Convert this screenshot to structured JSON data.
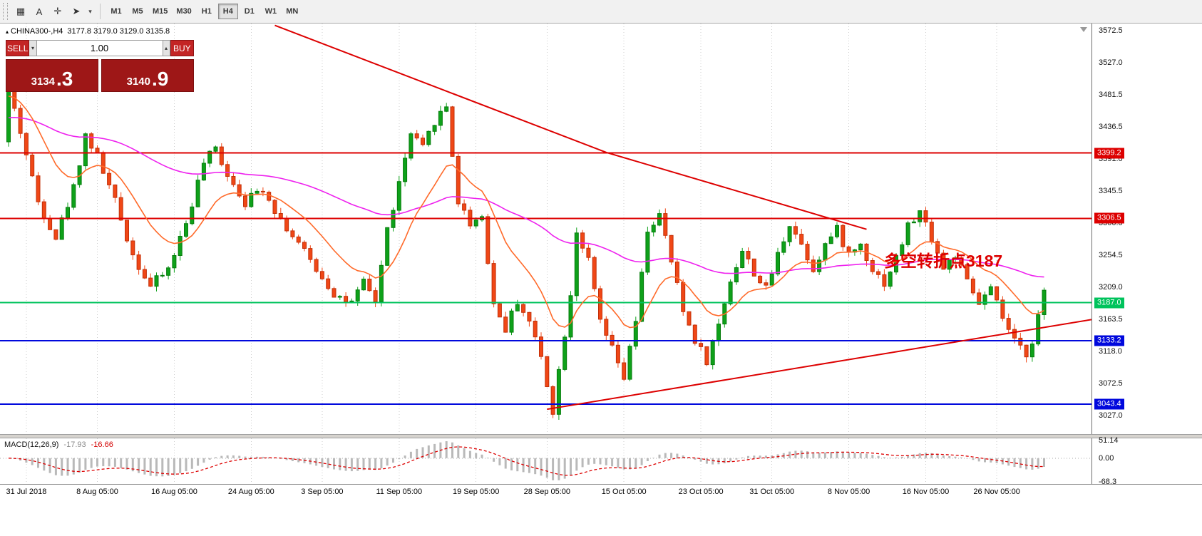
{
  "toolbar": {
    "icons": [
      {
        "name": "symbols-grid-icon",
        "glyph": "▦"
      },
      {
        "name": "text-label-icon",
        "glyph": "A"
      },
      {
        "name": "crosshair-icon",
        "glyph": "✛"
      },
      {
        "name": "draw-tools-icon",
        "glyph": "➤"
      },
      {
        "name": "draw-tools-caret-icon",
        "glyph": "▾"
      }
    ],
    "timeframes": [
      {
        "label": "M1",
        "active": false
      },
      {
        "label": "M5",
        "active": false
      },
      {
        "label": "M15",
        "active": false
      },
      {
        "label": "M30",
        "active": false
      },
      {
        "label": "H1",
        "active": false
      },
      {
        "label": "H4",
        "active": true
      },
      {
        "label": "D1",
        "active": false
      },
      {
        "label": "W1",
        "active": false
      },
      {
        "label": "MN",
        "active": false
      }
    ]
  },
  "chart_header": {
    "collapse_icon": "▴",
    "symbol": "CHINA300-,H4",
    "ohlc": "3177.8 3179.0 3129.0 3135.8"
  },
  "trade_panel": {
    "sell_label": "SELL",
    "buy_label": "BUY",
    "volume": "1.00",
    "combo_caret": "▾",
    "spin_caret": "▴",
    "bid_main": "3134",
    "bid_pips": ".3",
    "ask_main": "3140",
    "ask_pips": ".9"
  },
  "chart_data": {
    "type": "candlestick",
    "symbol": "CHINA300-",
    "timeframe": "H4",
    "bar_count": 176,
    "y_range": [
      3000.8,
      3582.6
    ],
    "colors": {
      "up": "#0ea11a",
      "up_border": "#067d0c",
      "down": "#f04716",
      "down_border": "#c23009",
      "ma_fast": "#ff6a2a",
      "ma_slow": "#ee22ee",
      "trend": "#dd0000",
      "grid": "#cccccc",
      "hist": "#b9b9b9",
      "signal": "#dd0000"
    },
    "y_ticks": [
      3572.5,
      3527.0,
      3481.5,
      3436.5,
      3391.0,
      3345.5,
      3300.0,
      3254.5,
      3209.0,
      3163.5,
      3118.0,
      3072.5,
      3027.0
    ],
    "h_lines": [
      {
        "price": 3399.2,
        "color": "#dd0000"
      },
      {
        "price": 3306.5,
        "color": "#dd0000"
      },
      {
        "price": 3187.0,
        "color": "#00c35c"
      },
      {
        "price": 3133.2,
        "color": "#0008dd"
      },
      {
        "price": 3043.4,
        "color": "#0008dd"
      }
    ],
    "trend_lines": [
      {
        "points": [
          [
            45,
            3580
          ],
          [
            101,
            3400
          ],
          [
            145,
            3291
          ]
        ],
        "color": "#dd0000"
      },
      {
        "points": [
          [
            91,
            3036
          ],
          [
            183,
            3163
          ]
        ],
        "color": "#dd0000"
      }
    ],
    "ma_fast_start": 3478,
    "ma_slow_start": 3448,
    "price_waypoints": [
      [
        0,
        3415
      ],
      [
        1,
        3490
      ],
      [
        3,
        3430
      ],
      [
        6,
        3330
      ],
      [
        9,
        3280
      ],
      [
        12,
        3350
      ],
      [
        14,
        3425
      ],
      [
        16,
        3395
      ],
      [
        19,
        3330
      ],
      [
        22,
        3255
      ],
      [
        25,
        3210
      ],
      [
        28,
        3235
      ],
      [
        31,
        3300
      ],
      [
        34,
        3385
      ],
      [
        36,
        3405
      ],
      [
        38,
        3370
      ],
      [
        41,
        3330
      ],
      [
        44,
        3350
      ],
      [
        47,
        3305
      ],
      [
        50,
        3270
      ],
      [
        53,
        3235
      ],
      [
        56,
        3200
      ],
      [
        59,
        3185
      ],
      [
        61,
        3215
      ],
      [
        63,
        3190
      ],
      [
        65,
        3290
      ],
      [
        67,
        3355
      ],
      [
        69,
        3425
      ],
      [
        71,
        3405
      ],
      [
        73,
        3445
      ],
      [
        75,
        3465
      ],
      [
        77,
        3330
      ],
      [
        79,
        3300
      ],
      [
        81,
        3310
      ],
      [
        83,
        3185
      ],
      [
        85,
        3150
      ],
      [
        87,
        3190
      ],
      [
        89,
        3160
      ],
      [
        91,
        3110
      ],
      [
        93,
        3035
      ],
      [
        94,
        3090
      ],
      [
        96,
        3200
      ],
      [
        97,
        3290
      ],
      [
        99,
        3245
      ],
      [
        101,
        3160
      ],
      [
        103,
        3120
      ],
      [
        105,
        3080
      ],
      [
        107,
        3160
      ],
      [
        109,
        3290
      ],
      [
        111,
        3310
      ],
      [
        113,
        3245
      ],
      [
        115,
        3175
      ],
      [
        117,
        3135
      ],
      [
        119,
        3105
      ],
      [
        121,
        3155
      ],
      [
        123,
        3220
      ],
      [
        125,
        3260
      ],
      [
        127,
        3230
      ],
      [
        129,
        3205
      ],
      [
        131,
        3255
      ],
      [
        133,
        3300
      ],
      [
        135,
        3270
      ],
      [
        137,
        3235
      ],
      [
        139,
        3270
      ],
      [
        141,
        3290
      ],
      [
        143,
        3255
      ],
      [
        145,
        3270
      ],
      [
        147,
        3235
      ],
      [
        149,
        3215
      ],
      [
        151,
        3250
      ],
      [
        153,
        3295
      ],
      [
        155,
        3315
      ],
      [
        157,
        3280
      ],
      [
        159,
        3235
      ],
      [
        161,
        3255
      ],
      [
        163,
        3215
      ],
      [
        165,
        3185
      ],
      [
        167,
        3205
      ],
      [
        169,
        3165
      ],
      [
        171,
        3130
      ],
      [
        173,
        3115
      ],
      [
        174,
        3135
      ],
      [
        176,
        3200
      ]
    ],
    "annotation": {
      "text": "多空转折点3187",
      "bar": 148,
      "price": 3238,
      "color": "#dd0000"
    }
  },
  "macd": {
    "label": "MACD(12,26,9)",
    "value": "-17.93",
    "signal_value": "-16.66",
    "params": [
      12,
      26,
      9
    ],
    "ticks": [
      {
        "label": "51.14",
        "value": 51.14
      },
      {
        "label": "0.00",
        "value": 0
      },
      {
        "label": "-68.3",
        "value": -68.3
      }
    ]
  },
  "time_axis": [
    {
      "label": "31 Jul 2018",
      "bar": 3
    },
    {
      "label": "8 Aug 05:00",
      "bar": 15
    },
    {
      "label": "16 Aug 05:00",
      "bar": 28
    },
    {
      "label": "24 Aug 05:00",
      "bar": 41
    },
    {
      "label": "3 Sep 05:00",
      "bar": 53
    },
    {
      "label": "11 Sep 05:00",
      "bar": 66
    },
    {
      "label": "19 Sep 05:00",
      "bar": 79
    },
    {
      "label": "28 Sep 05:00",
      "bar": 91
    },
    {
      "label": "15 Oct 05:00",
      "bar": 104
    },
    {
      "label": "23 Oct 05:00",
      "bar": 117
    },
    {
      "label": "31 Oct 05:00",
      "bar": 129
    },
    {
      "label": "8 Nov 05:00",
      "bar": 142
    },
    {
      "label": "16 Nov 05:00",
      "bar": 155
    },
    {
      "label": "26 Nov 05:00",
      "bar": 167
    }
  ]
}
